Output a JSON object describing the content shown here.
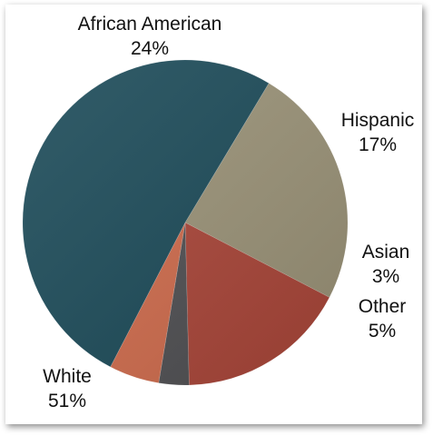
{
  "chart_data": {
    "type": "pie",
    "slices": [
      {
        "label": "African American",
        "value": 24,
        "display": "24%",
        "color": "#9a9277"
      },
      {
        "label": "Hispanic",
        "value": 17,
        "display": "17%",
        "color": "#a94538"
      },
      {
        "label": "Asian",
        "value": 3,
        "display": "3%",
        "color": "#4f4f52"
      },
      {
        "label": "Other",
        "value": 5,
        "display": "5%",
        "color": "#cf6b4c"
      },
      {
        "label": "White",
        "value": 51,
        "display": "51%",
        "color": "#1b4a58"
      }
    ],
    "start_angle_deg": -59,
    "direction": "clockwise",
    "units": "%"
  }
}
